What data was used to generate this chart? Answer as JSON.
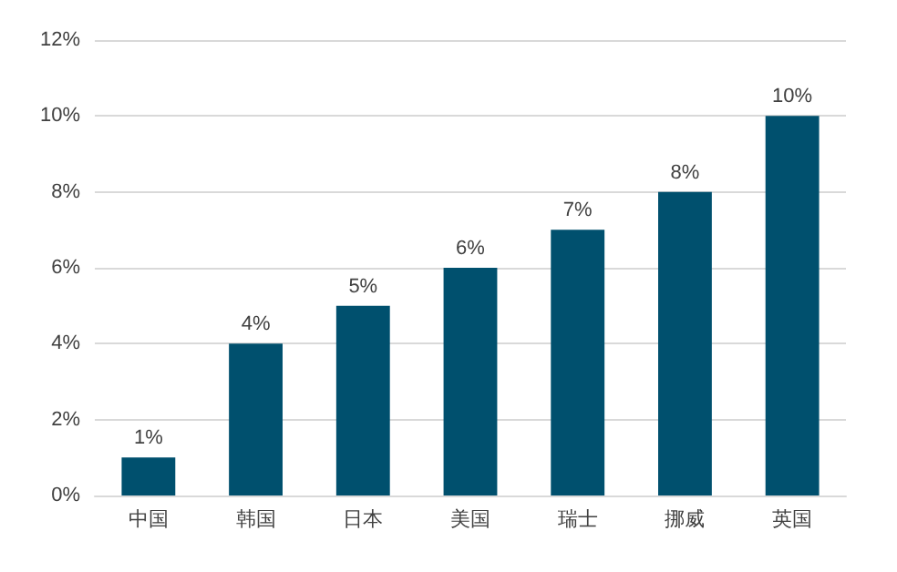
{
  "chart_data": {
    "type": "bar",
    "categories": [
      "中国",
      "韩国",
      "日本",
      "美国",
      "瑞士",
      "挪威",
      "英国"
    ],
    "values": [
      1,
      4,
      5,
      6,
      7,
      8,
      10
    ],
    "value_labels": [
      "1%",
      "4%",
      "5%",
      "6%",
      "7%",
      "8%",
      "10%"
    ],
    "color": "#00506e",
    "ylim": [
      0,
      12
    ],
    "yticks": [
      {
        "value": 0,
        "label": "0%"
      },
      {
        "value": 2,
        "label": "2%"
      },
      {
        "value": 4,
        "label": "4%"
      },
      {
        "value": 6,
        "label": "6%"
      },
      {
        "value": 8,
        "label": "8%"
      },
      {
        "value": 10,
        "label": "10%"
      },
      {
        "value": 12,
        "label": "12%"
      }
    ],
    "grid": "y"
  }
}
